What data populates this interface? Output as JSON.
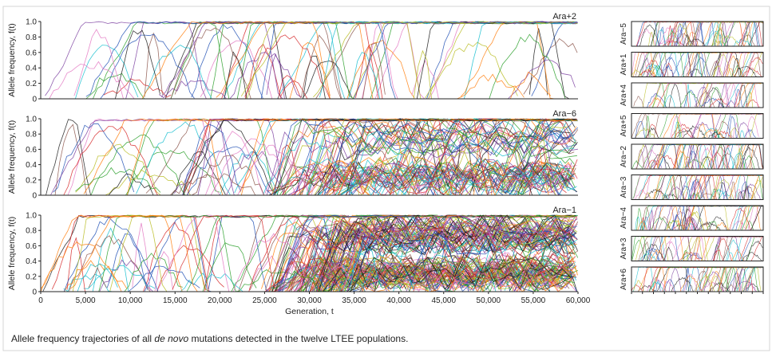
{
  "caption": {
    "prefix": "Allele frequency trajectories of all ",
    "emphasis": "de novo",
    "suffix": " mutations detected in the twelve LTEE populations."
  },
  "chart_data": [
    {
      "type": "line",
      "panel": "Ara+2",
      "ylabel": "Allele frequency, f(t)",
      "xlim": [
        0,
        60000
      ],
      "ylim": [
        0,
        1.0
      ],
      "yticks": [
        "0",
        "0.2",
        "0.4",
        "0.6",
        "0.8",
        "1.0"
      ],
      "line_count": 70
    },
    {
      "type": "line",
      "panel": "Ara−6",
      "ylabel": "Allele frequency, f(t)",
      "xlim": [
        0,
        60000
      ],
      "ylim": [
        0,
        1.0
      ],
      "yticks": [
        "0",
        "0.2",
        "0.4",
        "0.6",
        "0.8",
        "1.0"
      ],
      "line_count": 150
    },
    {
      "type": "line",
      "panel": "Ara−1",
      "ylabel": "Allele frequency, f(t)",
      "xlabel": "Generation, t",
      "xlim": [
        0,
        60000
      ],
      "ylim": [
        0,
        1.0
      ],
      "yticks": [
        "0",
        "0.2",
        "0.4",
        "0.6",
        "0.8",
        "1.0"
      ],
      "xticks": [
        "0",
        "5,000",
        "10,000",
        "15,000",
        "20,000",
        "25,000",
        "30,000",
        "35,000",
        "40,000",
        "45,000",
        "50,000",
        "55,000",
        "60,000"
      ],
      "line_count": 220
    },
    {
      "type": "line",
      "panel": "Ara−5",
      "xlim": [
        0,
        60000
      ],
      "ylim": [
        0,
        1.0
      ],
      "line_count": 60
    },
    {
      "type": "line",
      "panel": "Ara+1",
      "xlim": [
        0,
        60000
      ],
      "ylim": [
        0,
        1.0
      ],
      "line_count": 60
    },
    {
      "type": "line",
      "panel": "Ara+4",
      "xlim": [
        0,
        60000
      ],
      "ylim": [
        0,
        1.0
      ],
      "line_count": 40
    },
    {
      "type": "line",
      "panel": "Ara+5",
      "xlim": [
        0,
        60000
      ],
      "ylim": [
        0,
        1.0
      ],
      "line_count": 40
    },
    {
      "type": "line",
      "panel": "Ara−2",
      "xlim": [
        0,
        60000
      ],
      "ylim": [
        0,
        1.0
      ],
      "line_count": 60
    },
    {
      "type": "line",
      "panel": "Ara−3",
      "xlim": [
        0,
        60000
      ],
      "ylim": [
        0,
        1.0
      ],
      "line_count": 60
    },
    {
      "type": "line",
      "panel": "Ara−4",
      "xlim": [
        0,
        60000
      ],
      "ylim": [
        0,
        1.0
      ],
      "line_count": 60
    },
    {
      "type": "line",
      "panel": "Ara+3",
      "xlim": [
        0,
        60000
      ],
      "ylim": [
        0,
        1.0
      ],
      "line_count": 50
    },
    {
      "type": "line",
      "panel": "Ara+6",
      "xlim": [
        0,
        60000
      ],
      "ylim": [
        0,
        1.0
      ],
      "line_count": 60
    }
  ],
  "colors": [
    "#1f4fb4",
    "#d62728",
    "#2ca02c",
    "#7b3fa0",
    "#17becf",
    "#b8bc22",
    "#e377c2",
    "#1a1a1a",
    "#ff7f0e",
    "#8c564b"
  ],
  "axis_color": "#222222",
  "border_color": "#cfcfcf"
}
